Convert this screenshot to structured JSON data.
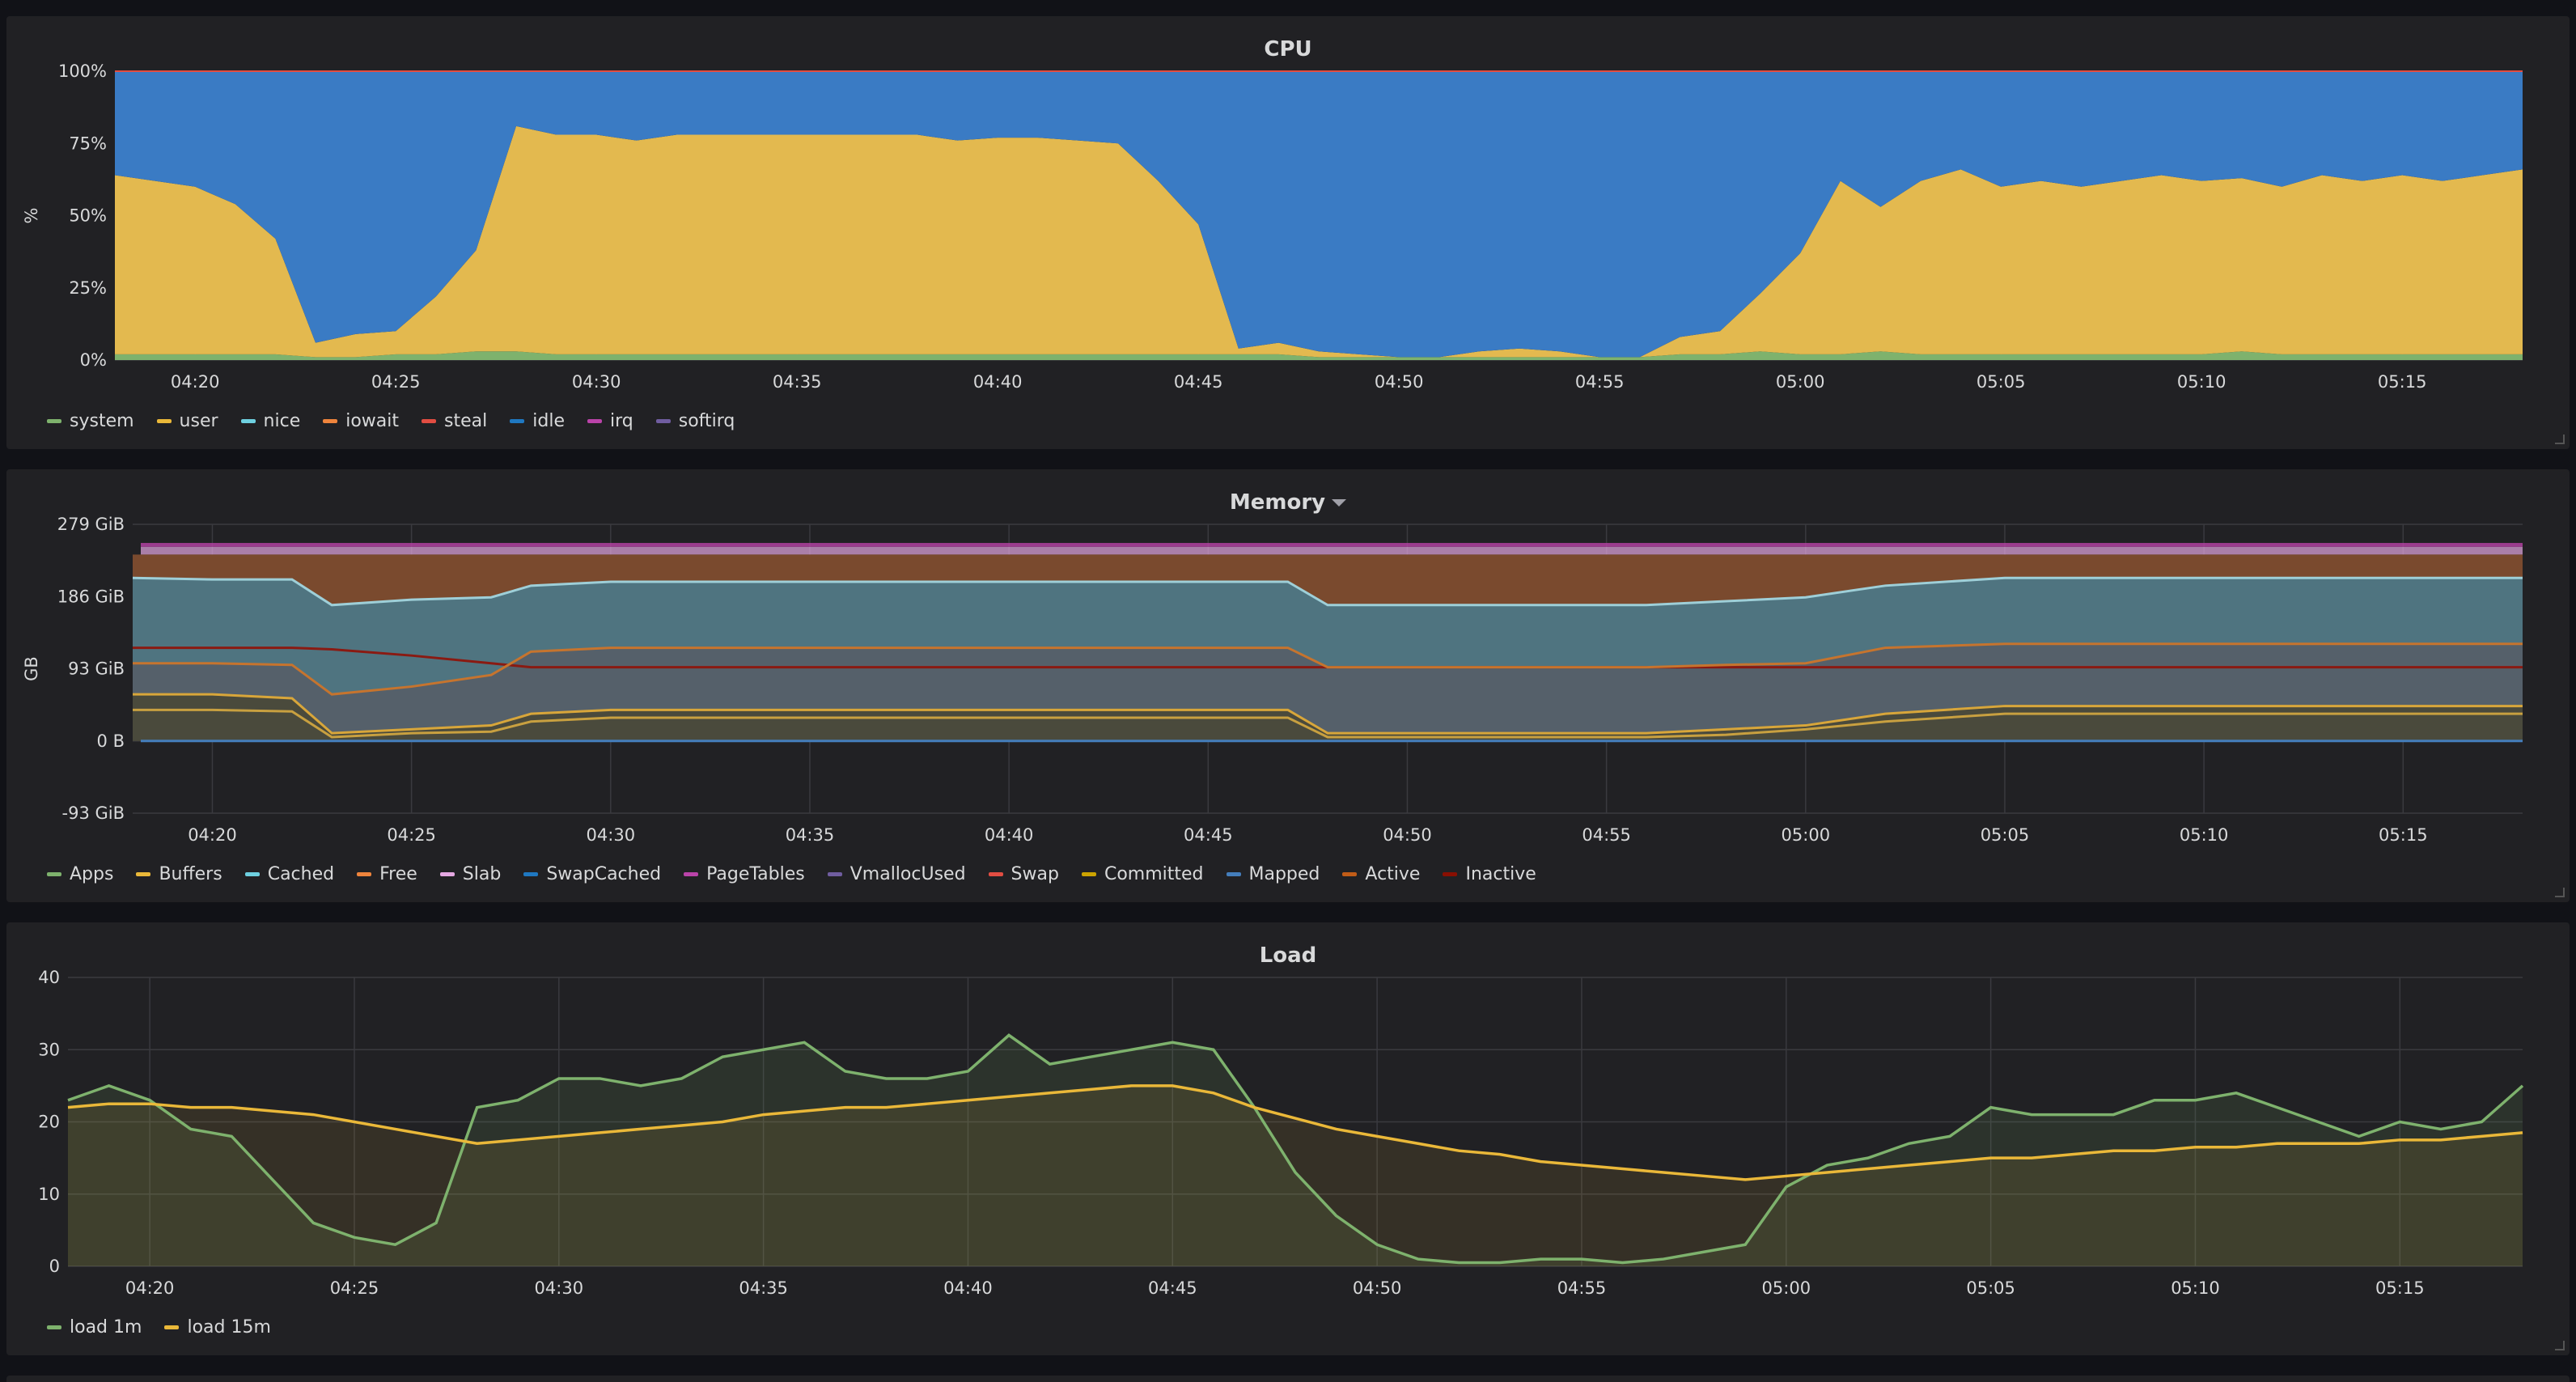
{
  "panels": {
    "cpu": {
      "title": "CPU",
      "legend": [
        {
          "name": "system",
          "color": "#7eb26d"
        },
        {
          "name": "user",
          "color": "#eab839"
        },
        {
          "name": "nice",
          "color": "#6ed0e0"
        },
        {
          "name": "iowait",
          "color": "#ef843c"
        },
        {
          "name": "steal",
          "color": "#e24d42"
        },
        {
          "name": "idle",
          "color": "#1f78c1"
        },
        {
          "name": "irq",
          "color": "#ba43a9"
        },
        {
          "name": "softirq",
          "color": "#705da0"
        }
      ]
    },
    "memory": {
      "title": "Memory",
      "legend": [
        {
          "name": "Apps",
          "color": "#7eb26d"
        },
        {
          "name": "Buffers",
          "color": "#eab839"
        },
        {
          "name": "Cached",
          "color": "#6ed0e0"
        },
        {
          "name": "Free",
          "color": "#ef843c"
        },
        {
          "name": "Slab",
          "color": "#e5a8e2"
        },
        {
          "name": "SwapCached",
          "color": "#1f78c1"
        },
        {
          "name": "PageTables",
          "color": "#ba43a9"
        },
        {
          "name": "VmallocUsed",
          "color": "#705da0"
        },
        {
          "name": "Swap",
          "color": "#e24d42"
        },
        {
          "name": "Committed",
          "color": "#cca300"
        },
        {
          "name": "Mapped",
          "color": "#447ebc"
        },
        {
          "name": "Active",
          "color": "#c15c17"
        },
        {
          "name": "Inactive",
          "color": "#890f02"
        }
      ]
    },
    "load": {
      "title": "Load",
      "legend": [
        {
          "name": "load 1m",
          "color": "#7eb26d"
        },
        {
          "name": "load 15m",
          "color": "#eab839"
        }
      ]
    }
  },
  "chart_data": [
    {
      "type": "area",
      "title": "CPU",
      "ylabel": "%",
      "ylim": [
        0,
        100
      ],
      "yticks": [
        "0%",
        "25%",
        "50%",
        "75%",
        "100%"
      ],
      "xticks": [
        "04:20",
        "04:25",
        "04:30",
        "04:35",
        "04:40",
        "04:45",
        "04:50",
        "04:55",
        "05:00",
        "05:05",
        "05:10",
        "05:15"
      ],
      "x": [
        "04:18",
        "04:19",
        "04:20",
        "04:21",
        "04:22",
        "04:23",
        "04:24",
        "04:25",
        "04:26",
        "04:27",
        "04:28",
        "04:29",
        "04:30",
        "04:31",
        "04:32",
        "04:33",
        "04:34",
        "04:35",
        "04:36",
        "04:37",
        "04:38",
        "04:39",
        "04:40",
        "04:41",
        "04:42",
        "04:43",
        "04:44",
        "04:45",
        "04:46",
        "04:47",
        "04:48",
        "04:49",
        "04:50",
        "04:51",
        "04:52",
        "04:53",
        "04:54",
        "04:55",
        "04:56",
        "04:57",
        "04:58",
        "04:59",
        "05:00",
        "05:01",
        "05:02",
        "05:03",
        "05:04",
        "05:05",
        "05:06",
        "05:07",
        "05:08",
        "05:09",
        "05:10",
        "05:11",
        "05:12",
        "05:13",
        "05:14",
        "05:15",
        "05:16",
        "05:17",
        "05:18"
      ],
      "stacked": true,
      "series": [
        {
          "name": "system",
          "values": [
            2,
            2,
            2,
            2,
            2,
            1,
            1,
            2,
            2,
            3,
            3,
            2,
            2,
            2,
            2,
            2,
            2,
            2,
            2,
            2,
            2,
            2,
            2,
            2,
            2,
            2,
            2,
            2,
            2,
            2,
            1,
            1,
            1,
            1,
            1,
            1,
            1,
            1,
            1,
            2,
            2,
            3,
            2,
            2,
            3,
            2,
            2,
            2,
            2,
            2,
            2,
            2,
            2,
            3,
            2,
            2,
            2,
            2,
            2,
            2,
            2
          ]
        },
        {
          "name": "user",
          "values": [
            62,
            60,
            58,
            52,
            40,
            5,
            8,
            8,
            20,
            35,
            78,
            76,
            76,
            74,
            76,
            76,
            76,
            76,
            76,
            76,
            76,
            74,
            75,
            75,
            74,
            73,
            60,
            45,
            2,
            4,
            2,
            1,
            0,
            0,
            2,
            3,
            2,
            0,
            0,
            6,
            8,
            20,
            35,
            60,
            50,
            60,
            64,
            58,
            60,
            58,
            60,
            62,
            60,
            60,
            58,
            62,
            60,
            62,
            60,
            62,
            64
          ]
        },
        {
          "name": "idle",
          "values": [
            36,
            38,
            40,
            46,
            58,
            94,
            91,
            90,
            78,
            62,
            19,
            22,
            22,
            24,
            22,
            22,
            22,
            22,
            22,
            22,
            22,
            24,
            23,
            23,
            24,
            25,
            38,
            53,
            96,
            94,
            97,
            98,
            99,
            99,
            97,
            96,
            97,
            99,
            99,
            92,
            90,
            77,
            63,
            38,
            47,
            38,
            34,
            40,
            38,
            40,
            38,
            36,
            38,
            37,
            40,
            36,
            38,
            36,
            38,
            36,
            34
          ]
        }
      ]
    },
    {
      "type": "area",
      "title": "Memory",
      "ylabel": "GB",
      "ylim": [
        -93,
        279
      ],
      "yticks": [
        "-93 GiB",
        "0 B",
        "93 GiB",
        "186 GiB",
        "279 GiB"
      ],
      "xticks": [
        "04:20",
        "04:25",
        "04:30",
        "04:35",
        "04:40",
        "04:45",
        "04:50",
        "04:55",
        "05:00",
        "05:05",
        "05:10",
        "05:15"
      ],
      "x": [
        "04:18",
        "04:20",
        "04:22",
        "04:23",
        "04:25",
        "04:27",
        "04:28",
        "04:30",
        "04:35",
        "04:40",
        "04:45",
        "04:47",
        "04:48",
        "04:50",
        "04:55",
        "04:56",
        "04:58",
        "05:00",
        "05:02",
        "05:05",
        "05:10",
        "05:15",
        "05:18"
      ],
      "series": [
        {
          "name": "Cached",
          "values": [
            210,
            208,
            208,
            175,
            182,
            185,
            200,
            205,
            205,
            205,
            205,
            205,
            175,
            175,
            175,
            175,
            180,
            185,
            200,
            210,
            210,
            210,
            210
          ]
        },
        {
          "name": "Active",
          "values": [
            120,
            120,
            120,
            118,
            110,
            100,
            95,
            95,
            95,
            95,
            95,
            95,
            95,
            95,
            95,
            95,
            95,
            95,
            95,
            95,
            95,
            95,
            95
          ]
        },
        {
          "name": "Inactive",
          "values": [
            100,
            100,
            98,
            60,
            70,
            85,
            115,
            120,
            120,
            120,
            120,
            120,
            95,
            95,
            95,
            95,
            98,
            100,
            120,
            125,
            125,
            125,
            125
          ]
        },
        {
          "name": "Apps",
          "values": [
            40,
            40,
            38,
            5,
            10,
            12,
            25,
            30,
            30,
            30,
            30,
            30,
            5,
            5,
            5,
            5,
            8,
            15,
            25,
            35,
            35,
            35,
            35
          ]
        },
        {
          "name": "Committed",
          "values": [
            60,
            60,
            55,
            10,
            15,
            20,
            35,
            40,
            40,
            40,
            40,
            40,
            10,
            10,
            10,
            10,
            15,
            20,
            35,
            45,
            45,
            45,
            45
          ]
        }
      ]
    },
    {
      "type": "line",
      "title": "Load",
      "ylim": [
        0,
        40
      ],
      "yticks": [
        "0",
        "10",
        "20",
        "30",
        "40"
      ],
      "xticks": [
        "04:20",
        "04:25",
        "04:30",
        "04:35",
        "04:40",
        "04:45",
        "04:50",
        "04:55",
        "05:00",
        "05:05",
        "05:10",
        "05:15"
      ],
      "x": [
        "04:18",
        "04:19",
        "04:20",
        "04:21",
        "04:22",
        "04:23",
        "04:24",
        "04:25",
        "04:26",
        "04:27",
        "04:28",
        "04:29",
        "04:30",
        "04:31",
        "04:32",
        "04:33",
        "04:34",
        "04:35",
        "04:36",
        "04:37",
        "04:38",
        "04:39",
        "04:40",
        "04:41",
        "04:42",
        "04:43",
        "04:44",
        "04:45",
        "04:46",
        "04:47",
        "04:48",
        "04:49",
        "04:50",
        "04:51",
        "04:52",
        "04:53",
        "04:54",
        "04:55",
        "04:56",
        "04:57",
        "04:58",
        "04:59",
        "05:00",
        "05:01",
        "05:02",
        "05:03",
        "05:04",
        "05:05",
        "05:06",
        "05:07",
        "05:08",
        "05:09",
        "05:10",
        "05:11",
        "05:12",
        "05:13",
        "05:14",
        "05:15",
        "05:16",
        "05:17",
        "05:18"
      ],
      "series": [
        {
          "name": "load 1m",
          "values": [
            23,
            25,
            23,
            19,
            18,
            12,
            6,
            4,
            3,
            6,
            22,
            23,
            26,
            26,
            25,
            26,
            29,
            30,
            31,
            27,
            26,
            26,
            27,
            32,
            28,
            29,
            30,
            31,
            30,
            22,
            13,
            7,
            3,
            1,
            0.5,
            0.5,
            1,
            1,
            0.5,
            1,
            2,
            3,
            11,
            14,
            15,
            17,
            18,
            22,
            21,
            21,
            21,
            23,
            23,
            24,
            22,
            20,
            18,
            20,
            19,
            20,
            25
          ]
        },
        {
          "name": "load 15m",
          "values": [
            22,
            22.5,
            22.5,
            22,
            22,
            21.5,
            21,
            20,
            19,
            18,
            17,
            17.5,
            18,
            18.5,
            19,
            19.5,
            20,
            21,
            21.5,
            22,
            22,
            22.5,
            23,
            23.5,
            24,
            24.5,
            25,
            25,
            24,
            22,
            20.5,
            19,
            18,
            17,
            16,
            15.5,
            14.5,
            14,
            13.5,
            13,
            12.5,
            12,
            12.5,
            13,
            13.5,
            14,
            14.5,
            15,
            15,
            15.5,
            16,
            16,
            16.5,
            16.5,
            17,
            17,
            17,
            17.5,
            17.5,
            18,
            18.5
          ]
        }
      ]
    }
  ]
}
